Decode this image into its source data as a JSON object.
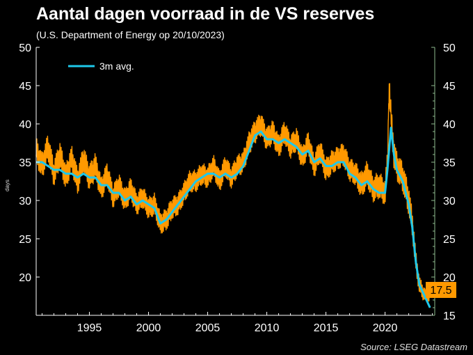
{
  "chart_data": {
    "type": "line",
    "title": "Aantal dagen voorraad in de VS reserves",
    "subtitle": "(U.S. Department of Energy op 20/10/2023)",
    "ylabel": "days",
    "source": "Source: LSEG Datastream",
    "xlim": [
      1990.5,
      2024.2
    ],
    "ylim": [
      15,
      50
    ],
    "x_ticks": [
      1995,
      2000,
      2005,
      2010,
      2015,
      2020
    ],
    "x_tick_labels": [
      "1995",
      "2000",
      "2005",
      "2010",
      "2015",
      "2020"
    ],
    "y_ticks": [
      15,
      20,
      25,
      30,
      35,
      40,
      45,
      50
    ],
    "y_tick_labels": [
      "15",
      "20",
      "25",
      "30",
      "35",
      "40",
      "45",
      "50"
    ],
    "y_tick_labels_left": [
      "",
      "20",
      "25",
      "30",
      "35",
      "40",
      "45",
      "50"
    ],
    "legend_placement": "top-left",
    "last_value_label": "17.5",
    "series": [
      {
        "name": "",
        "color": "#ff9900",
        "x": [
          1990.5,
          1991,
          1991.5,
          1992,
          1992.5,
          1993,
          1993.5,
          1994,
          1994.5,
          1995,
          1995.5,
          1996,
          1996.5,
          1997,
          1997.5,
          1998,
          1998.5,
          1999,
          1999.5,
          2000,
          2000.5,
          2001,
          2001.5,
          2002,
          2002.5,
          2003,
          2003.5,
          2004,
          2004.5,
          2005,
          2005.5,
          2006,
          2006.5,
          2007,
          2007.5,
          2008,
          2008.5,
          2009,
          2009.5,
          2010,
          2010.5,
          2011,
          2011.5,
          2012,
          2012.5,
          2013,
          2013.5,
          2014,
          2014.5,
          2015,
          2015.5,
          2016,
          2016.5,
          2017,
          2017.5,
          2018,
          2018.5,
          2019,
          2019.5,
          2020,
          2020.2,
          2020.35,
          2020.5,
          2020.75,
          2021,
          2021.5,
          2022,
          2022.3,
          2022.6,
          2022.9,
          2023.2,
          2023.5,
          2023.8
        ],
        "values": [
          36.5,
          34.5,
          37,
          33.5,
          36,
          33,
          35.5,
          32.5,
          35.5,
          33,
          34.5,
          31.5,
          33.5,
          30.5,
          32,
          30,
          31.5,
          29.5,
          30.5,
          29,
          29.5,
          27,
          27.5,
          29,
          29.5,
          31,
          32.5,
          32.5,
          33.5,
          33,
          34.5,
          32.5,
          34.5,
          33,
          34.5,
          35,
          37.5,
          39,
          40,
          38,
          39,
          37,
          39,
          37,
          38,
          35.5,
          37.5,
          34.5,
          36.5,
          34,
          35,
          35.5,
          36,
          34,
          33.5,
          32,
          33.5,
          31.5,
          32,
          31,
          35,
          45,
          41,
          36,
          34.5,
          33,
          30,
          27,
          22,
          19,
          18,
          17.5,
          17.5
        ],
        "band": [
          1.8,
          1.8,
          1.8,
          1.8,
          1.8,
          1.8,
          1.8,
          1.8,
          1.8,
          1.8,
          1.8,
          1.6,
          1.6,
          1.6,
          1.6,
          1.6,
          1.6,
          1.5,
          1.5,
          1.5,
          1.5,
          1.5,
          1.5,
          1.5,
          1.5,
          1.5,
          1.5,
          1.5,
          1.5,
          1.5,
          1.5,
          1.5,
          1.5,
          1.5,
          1.5,
          1.5,
          1.6,
          1.6,
          1.6,
          1.6,
          1.6,
          1.6,
          1.6,
          1.6,
          1.6,
          1.6,
          1.6,
          1.6,
          1.6,
          1.6,
          1.6,
          1.6,
          1.6,
          1.6,
          1.6,
          1.8,
          1.8,
          1.8,
          1.8,
          1.8,
          1.8,
          1.5,
          2.0,
          2.0,
          2.0,
          2.0,
          2.0,
          1.8,
          1.5,
          1.2,
          1.0,
          0.8,
          0.8
        ]
      },
      {
        "name": "3m avg.",
        "color": "#1ec8ea",
        "x": [
          1990.5,
          1991,
          1991.5,
          1992,
          1992.5,
          1993,
          1993.5,
          1994,
          1994.5,
          1995,
          1995.5,
          1996,
          1996.5,
          1997,
          1997.5,
          1998,
          1998.5,
          1999,
          1999.5,
          2000,
          2000.5,
          2001,
          2001.5,
          2002,
          2002.5,
          2003,
          2003.5,
          2004,
          2004.5,
          2005,
          2005.5,
          2006,
          2006.5,
          2007,
          2007.5,
          2008,
          2008.5,
          2009,
          2009.5,
          2010,
          2010.5,
          2011,
          2011.5,
          2012,
          2012.5,
          2013,
          2013.5,
          2014,
          2014.5,
          2015,
          2015.5,
          2016,
          2016.5,
          2017,
          2017.5,
          2018,
          2018.5,
          2019,
          2019.5,
          2020,
          2020.2,
          2020.5,
          2020.75,
          2021,
          2021.5,
          2022,
          2022.3,
          2022.6,
          2022.9,
          2023.2,
          2023.5,
          2023.8
        ],
        "values": [
          35,
          35,
          34.5,
          34,
          34,
          33.5,
          33.5,
          33,
          33.5,
          33,
          33,
          32,
          32,
          31,
          31,
          30,
          30.5,
          29.5,
          30,
          29.5,
          29,
          27,
          27.5,
          28.5,
          29.5,
          30.5,
          31.5,
          32.5,
          33,
          33.5,
          33.5,
          33,
          33.5,
          33,
          33.5,
          34.5,
          36.5,
          38.5,
          39,
          38,
          38,
          37.5,
          38,
          37.5,
          37,
          36,
          36.5,
          35,
          35.5,
          34.5,
          34.5,
          35,
          35,
          33.5,
          33,
          32,
          32.5,
          31.5,
          31,
          31,
          34,
          39.5,
          36,
          34,
          32.5,
          29.5,
          26.5,
          22,
          19,
          18,
          17,
          16
        ]
      }
    ]
  }
}
